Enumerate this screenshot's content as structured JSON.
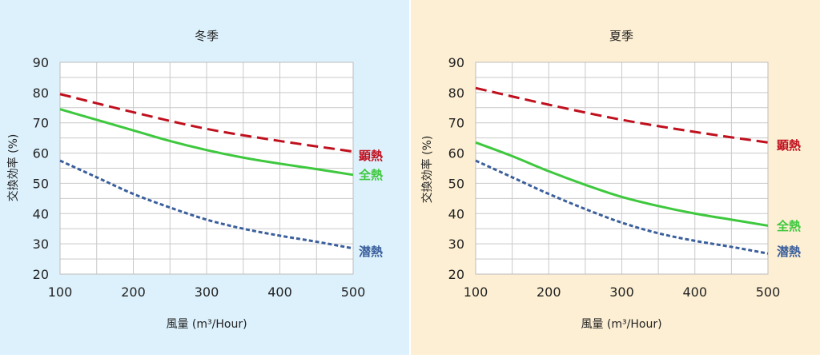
{
  "chart_data": [
    {
      "type": "line",
      "title": "冬季",
      "xlabel": "風量 (m³/Hour)",
      "ylabel": "交換効率 (%)",
      "xlim": [
        100,
        500
      ],
      "ylim": [
        20,
        90
      ],
      "xticks": [
        100,
        200,
        300,
        400,
        500
      ],
      "yticks": [
        20,
        30,
        40,
        50,
        60,
        70,
        80,
        90
      ],
      "grid": true,
      "background": "#DDF1FC",
      "series": [
        {
          "name": "顕熱",
          "color": "#C0101E",
          "style": "dashed",
          "x": [
            100,
            200,
            300,
            400,
            500
          ],
          "y": [
            79.5,
            73.5,
            68,
            64,
            60.5
          ]
        },
        {
          "name": "全熱",
          "color": "#3EC83E",
          "style": "solid",
          "x": [
            100,
            150,
            200,
            250,
            300,
            350,
            400,
            450,
            500
          ],
          "y": [
            74.5,
            71,
            67.5,
            64,
            61,
            58.5,
            56.5,
            54.7,
            52.8
          ]
        },
        {
          "name": "潜熱",
          "color": "#3A5F9C",
          "style": "dotted",
          "x": [
            100,
            150,
            200,
            250,
            300,
            350,
            400,
            450,
            500
          ],
          "y": [
            57.5,
            52,
            46.5,
            42,
            38,
            35,
            32.7,
            30.7,
            28.5
          ]
        }
      ]
    },
    {
      "type": "line",
      "title": "夏季",
      "xlabel": "風量 (m³/Hour)",
      "ylabel": "交換効率 (%)",
      "xlim": [
        100,
        500
      ],
      "ylim": [
        20,
        90
      ],
      "xticks": [
        100,
        200,
        300,
        400,
        500
      ],
      "yticks": [
        20,
        30,
        40,
        50,
        60,
        70,
        80,
        90
      ],
      "grid": true,
      "background": "#FDEFD3",
      "series": [
        {
          "name": "顕熱",
          "color": "#C0101E",
          "style": "dashed",
          "x": [
            100,
            200,
            300,
            400,
            500
          ],
          "y": [
            81.5,
            76,
            71,
            67,
            63.5
          ]
        },
        {
          "name": "全熱",
          "color": "#3EC83E",
          "style": "solid",
          "x": [
            100,
            150,
            200,
            250,
            300,
            350,
            400,
            450,
            500
          ],
          "y": [
            63.5,
            59,
            54,
            49.5,
            45.5,
            42.5,
            40,
            38,
            36
          ]
        },
        {
          "name": "潜熱",
          "color": "#3A5F9C",
          "style": "dotted",
          "x": [
            100,
            150,
            200,
            250,
            300,
            350,
            400,
            450,
            500
          ],
          "y": [
            57.5,
            52,
            46.5,
            41.5,
            37,
            33.5,
            31,
            29,
            26.8
          ]
        }
      ]
    }
  ]
}
